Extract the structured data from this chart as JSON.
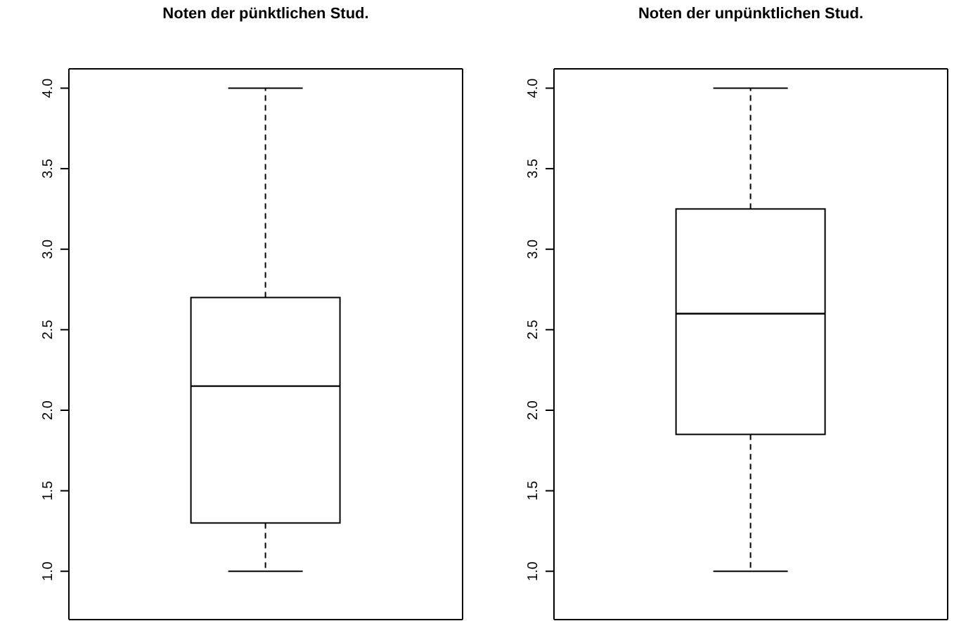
{
  "chart_data": [
    {
      "type": "box",
      "title": "Noten der pünktlichen Stud.",
      "categories": [
        null
      ],
      "boxes": [
        {
          "low": 1.0,
          "q1": 1.3,
          "median": 2.15,
          "q3": 2.7,
          "high": 4.0
        }
      ],
      "ylim": [
        0.7,
        4.12
      ],
      "yticks": [
        {
          "value": 1,
          "label": "1.0"
        },
        {
          "value": 1.5,
          "label": "1.5"
        },
        {
          "value": 2,
          "label": "2.0"
        },
        {
          "value": 2.5,
          "label": "2.5"
        },
        {
          "value": 3,
          "label": "3.0"
        },
        {
          "value": 3.5,
          "label": "3.5"
        },
        {
          "value": 4,
          "label": "4.0"
        }
      ]
    },
    {
      "type": "box",
      "title": "Noten der unpünktlichen Stud.",
      "categories": [
        null
      ],
      "boxes": [
        {
          "low": 1.0,
          "q1": 1.85,
          "median": 2.6,
          "q3": 3.25,
          "high": 4.0
        }
      ],
      "ylim": [
        0.7,
        4.12
      ],
      "yticks": [
        {
          "value": 1,
          "label": "1.0"
        },
        {
          "value": 1.5,
          "label": "1.5"
        },
        {
          "value": 2,
          "label": "2.0"
        },
        {
          "value": 2.5,
          "label": "2.5"
        },
        {
          "value": 3,
          "label": "3.0"
        },
        {
          "value": 3.5,
          "label": "3.5"
        },
        {
          "value": 4,
          "label": "4.0"
        }
      ]
    }
  ]
}
